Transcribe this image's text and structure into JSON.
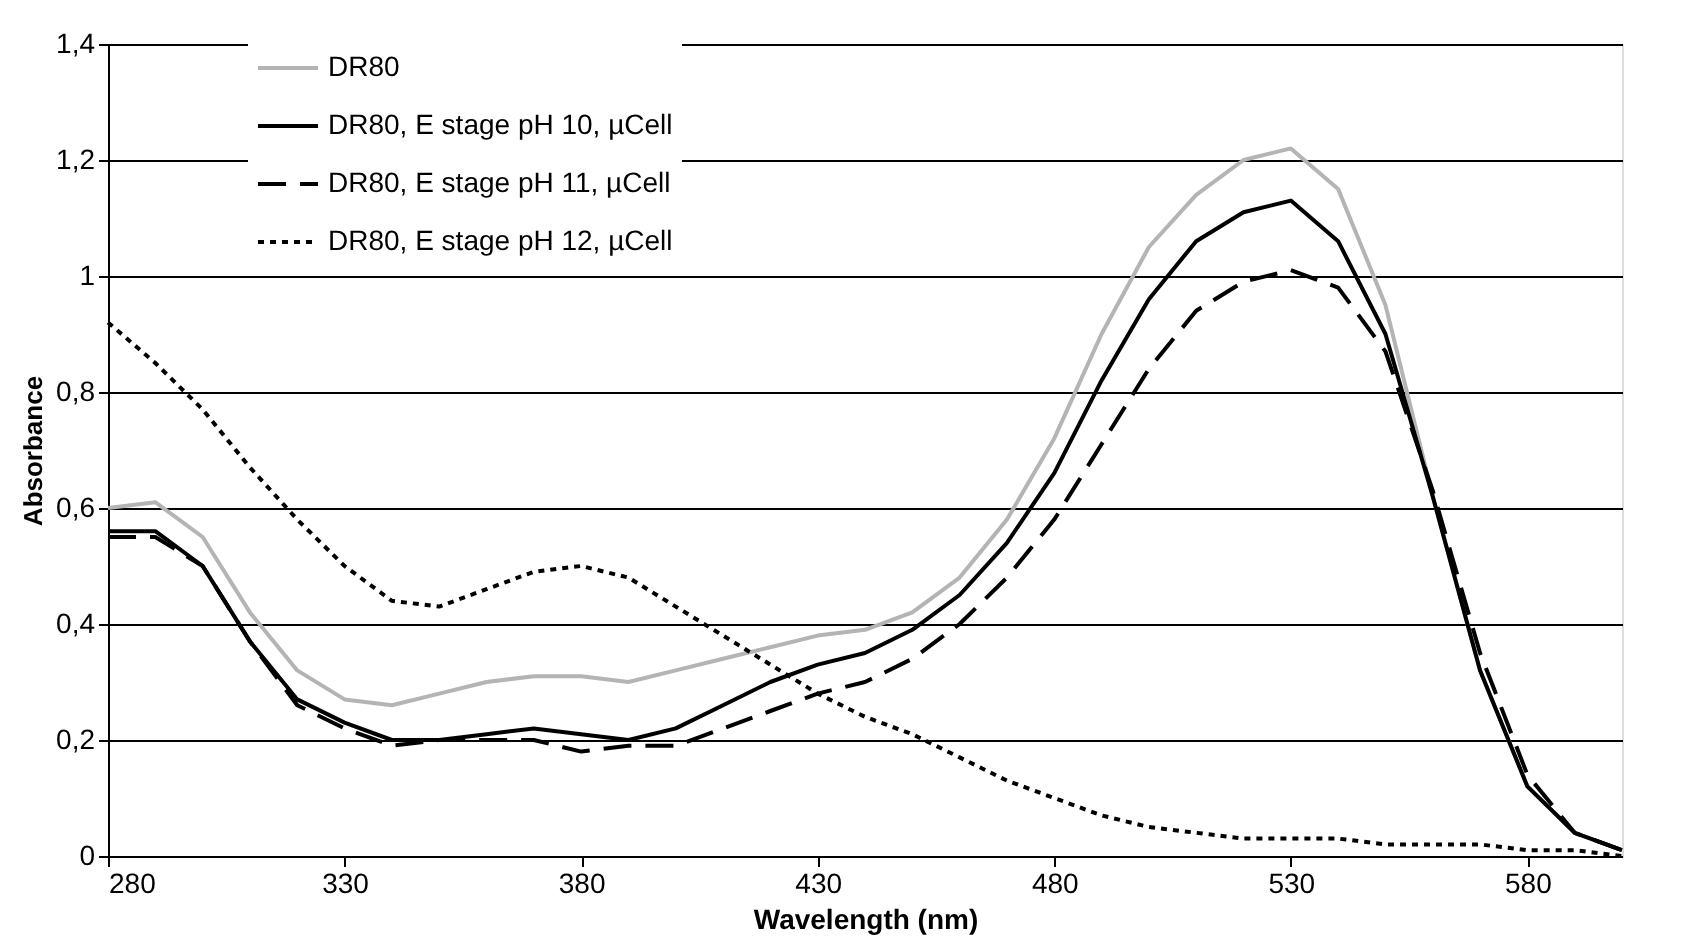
{
  "chart_data": {
    "type": "line",
    "xlabel": "Wavelength (nm)",
    "ylabel": "Absorbance",
    "x": [
      280,
      290,
      300,
      310,
      320,
      330,
      340,
      350,
      360,
      370,
      380,
      390,
      400,
      410,
      420,
      430,
      440,
      450,
      460,
      470,
      480,
      490,
      500,
      510,
      520,
      530,
      540,
      550,
      560,
      570,
      580,
      590,
      600
    ],
    "series": [
      {
        "name": "DR80",
        "color": "#b4b4b4",
        "line_style": "solid",
        "values": [
          0.6,
          0.61,
          0.55,
          0.42,
          0.32,
          0.27,
          0.26,
          0.28,
          0.3,
          0.31,
          0.31,
          0.3,
          0.32,
          0.34,
          0.36,
          0.38,
          0.39,
          0.42,
          0.48,
          0.58,
          0.72,
          0.9,
          1.05,
          1.14,
          1.2,
          1.22,
          1.15,
          0.95,
          0.62,
          0.32,
          0.12,
          0.04,
          0.01
        ]
      },
      {
        "name": "DR80, E stage pH 10, µCell",
        "color": "#000000",
        "line_style": "solid",
        "values": [
          0.56,
          0.56,
          0.5,
          0.37,
          0.27,
          0.23,
          0.2,
          0.2,
          0.21,
          0.22,
          0.21,
          0.2,
          0.22,
          0.26,
          0.3,
          0.33,
          0.35,
          0.39,
          0.45,
          0.54,
          0.66,
          0.82,
          0.96,
          1.06,
          1.11,
          1.13,
          1.06,
          0.9,
          0.62,
          0.32,
          0.12,
          0.04,
          0.01
        ]
      },
      {
        "name": "DR80, E stage pH 11, µCell",
        "color": "#000000",
        "line_style": "dashed",
        "values": [
          0.55,
          0.55,
          0.5,
          0.37,
          0.26,
          0.22,
          0.19,
          0.2,
          0.2,
          0.2,
          0.18,
          0.19,
          0.19,
          0.22,
          0.25,
          0.28,
          0.3,
          0.34,
          0.4,
          0.48,
          0.58,
          0.71,
          0.84,
          0.94,
          0.99,
          1.01,
          0.98,
          0.87,
          0.63,
          0.35,
          0.14,
          0.04,
          0.01
        ]
      },
      {
        "name": "DR80, E stage pH 12, µCell",
        "color": "#000000",
        "line_style": "dotted",
        "values": [
          0.92,
          0.85,
          0.77,
          0.67,
          0.58,
          0.5,
          0.44,
          0.43,
          0.46,
          0.49,
          0.5,
          0.48,
          0.43,
          0.38,
          0.33,
          0.28,
          0.24,
          0.21,
          0.17,
          0.13,
          0.1,
          0.07,
          0.05,
          0.04,
          0.03,
          0.03,
          0.03,
          0.02,
          0.02,
          0.02,
          0.01,
          0.01,
          0.0
        ]
      }
    ],
    "xlim": [
      280,
      600
    ],
    "xticks": [
      280,
      330,
      380,
      430,
      480,
      530,
      580
    ],
    "ylim": [
      0,
      1.4
    ],
    "yticks": [
      0,
      {
        "value": 0.2,
        "label": "0,2"
      },
      {
        "value": 0.4,
        "label": "0,4"
      },
      {
        "value": 0.6,
        "label": "0,6"
      },
      {
        "value": 0.8,
        "label": "0,8"
      },
      1,
      {
        "value": 1.2,
        "label": "1,2"
      },
      {
        "value": 1.4,
        "label": "1,4"
      }
    ],
    "grid": "y",
    "legend": "top left"
  }
}
